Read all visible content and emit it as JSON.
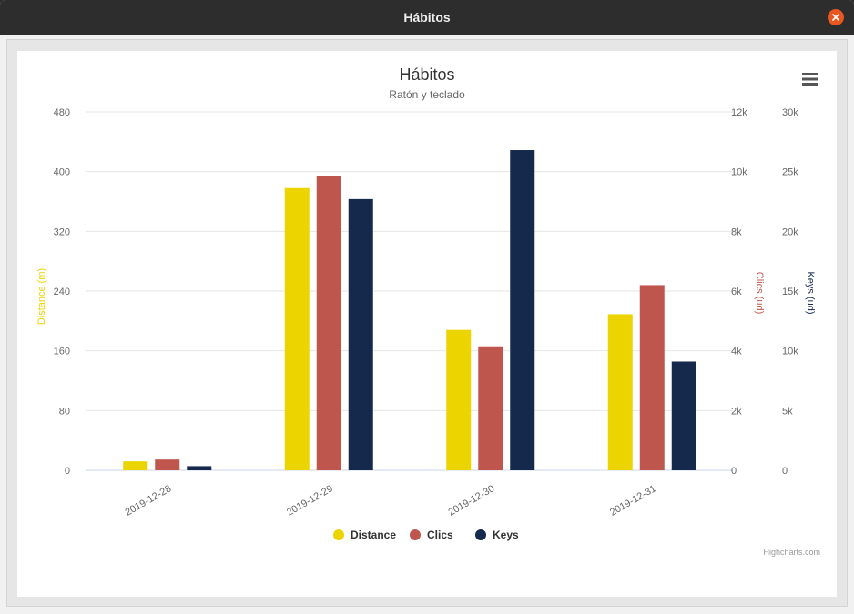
{
  "window": {
    "title": "Hábitos"
  },
  "icons": {
    "close": "close-icon",
    "menu": "hamburger-menu-icon"
  },
  "chart_data": {
    "type": "bar",
    "title": "Hábitos",
    "subtitle": "Ratón y teclado",
    "categories": [
      "2019-12-28",
      "2019-12-29",
      "2019-12-30",
      "2019-12-31"
    ],
    "series": [
      {
        "name": "Distance",
        "axis": "left",
        "color": "#ecd400",
        "values": [
          12,
          378,
          188,
          209
        ]
      },
      {
        "name": "Clics",
        "axis": "right1",
        "color": "#be564e",
        "values": [
          360,
          9850,
          4150,
          6200
        ]
      },
      {
        "name": "Keys",
        "axis": "right2",
        "color": "#15294c",
        "values": [
          350,
          22700,
          26800,
          9100
        ]
      }
    ],
    "axes": {
      "left": {
        "label": "Distance (m)",
        "color": "#ecd400",
        "ticks": [
          "0",
          "80",
          "160",
          "240",
          "320",
          "400",
          "480"
        ],
        "max": 480
      },
      "right1": {
        "label": "Clics (ud)",
        "color": "#be564e",
        "ticks": [
          "0",
          "2k",
          "4k",
          "6k",
          "8k",
          "10k",
          "12k"
        ],
        "max": 12000
      },
      "right2": {
        "label": "Keys (ud)",
        "color": "#15294c",
        "ticks": [
          "0",
          "5k",
          "10k",
          "15k",
          "20k",
          "25k",
          "30k"
        ],
        "max": 30000
      }
    },
    "legend_position": "bottom-center",
    "grid": true,
    "credits": "Highcharts.com"
  }
}
